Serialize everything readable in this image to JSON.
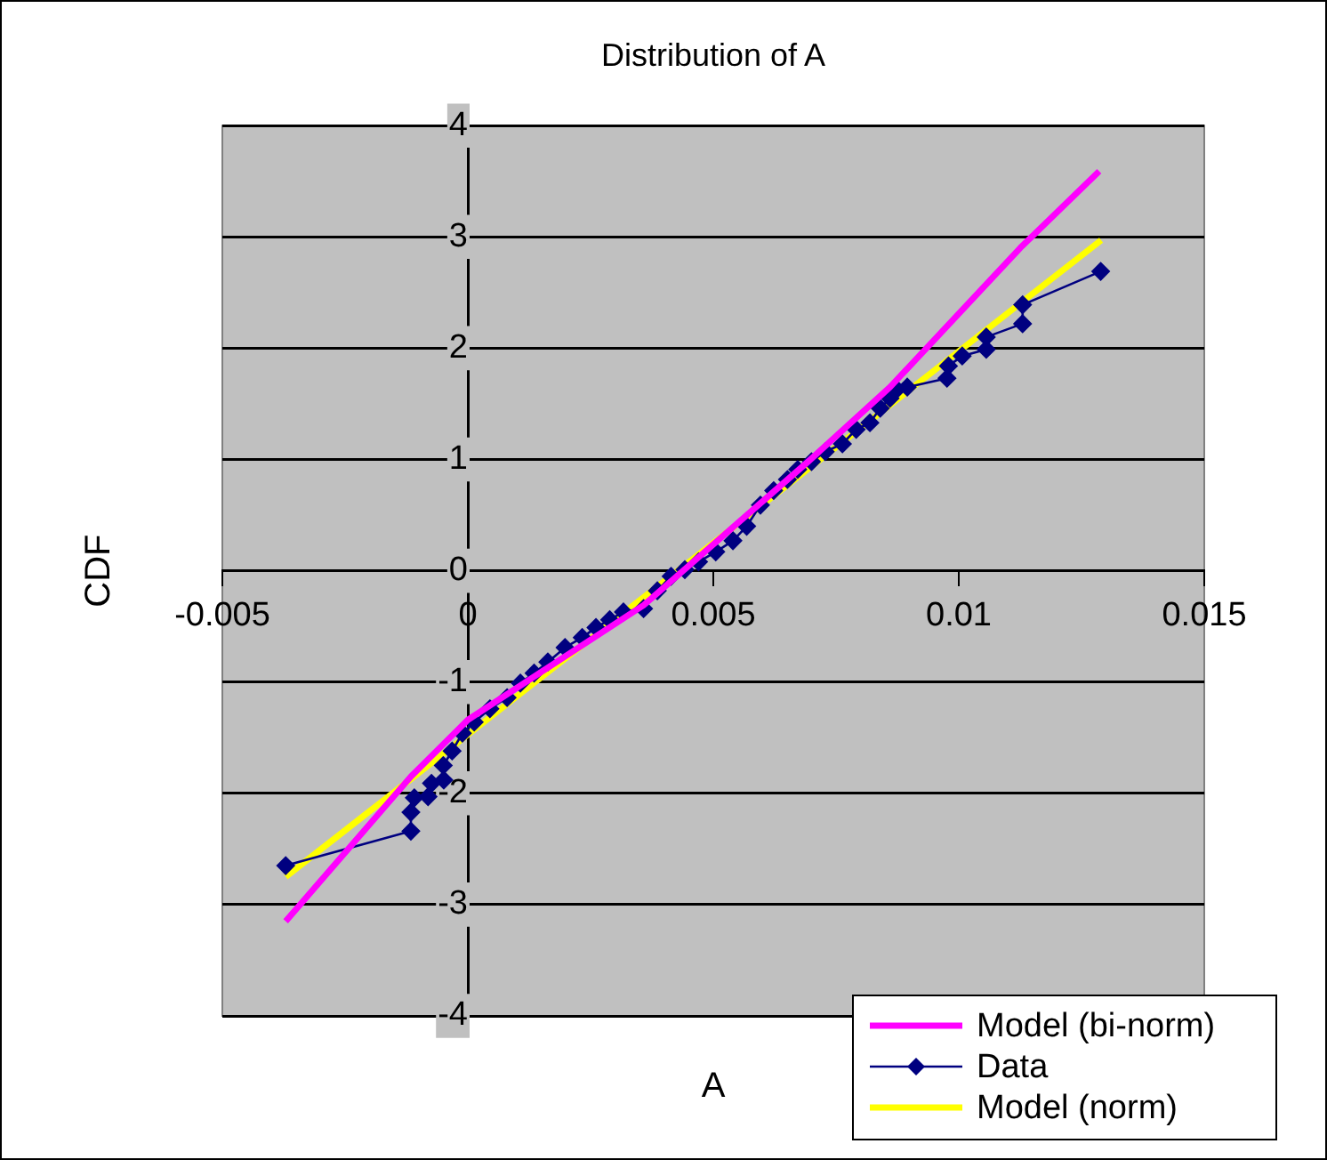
{
  "chart_data": {
    "type": "line",
    "title": "Distribution of A",
    "xlabel": "A",
    "ylabel": "CDF",
    "xlim": [
      -0.005,
      0.015
    ],
    "xticks": [
      -0.005,
      0,
      0.005,
      0.01,
      0.015
    ],
    "ylim": [
      -4,
      4
    ],
    "yticks": [
      -4,
      -3,
      -2,
      -1,
      0,
      1,
      2,
      3,
      4
    ],
    "grid": "y",
    "legend": "bottom right",
    "line_style": "solid",
    "series": [
      {
        "name": "Model (bi-norm)",
        "color": "#ff00ff",
        "marker": "none",
        "x": [
          -0.00371,
          -0.00116,
          0,
          0.00358,
          0.00693,
          0.0086,
          0.01125,
          0.01286
        ],
        "values": [
          -3.15,
          -1.85,
          -1.34,
          -0.31,
          0.98,
          1.65,
          2.9,
          3.59
        ]
      },
      {
        "name": "Data",
        "color": "#000080",
        "marker": "diamond",
        "x": [
          -0.00371,
          -0.00116,
          -0.00116,
          -0.00109,
          -0.00081,
          -0.00074,
          -0.00049,
          -0.0005,
          -0.00032,
          -0.00011,
          0.00013,
          0.00045,
          0.0008,
          0.00107,
          0.00135,
          0.00163,
          0.00198,
          0.00233,
          0.00261,
          0.00289,
          0.00317,
          0.00358,
          0.00386,
          0.00414,
          0.00442,
          0.0047,
          0.00505,
          0.0054,
          0.00568,
          0.00596,
          0.00623,
          0.00651,
          0.00672,
          0.007,
          0.00728,
          0.00763,
          0.00791,
          0.00819,
          0.0084,
          0.0086,
          0.00874,
          0.00895,
          0.00976,
          0.00979,
          0.01007,
          0.01056,
          0.01056,
          0.0113,
          0.0113,
          0.01289
        ],
        "values": [
          -2.65,
          -2.34,
          -2.17,
          -2.04,
          -2.03,
          -1.91,
          -1.88,
          -1.75,
          -1.62,
          -1.46,
          -1.36,
          -1.24,
          -1.14,
          -1.01,
          -0.92,
          -0.82,
          -0.69,
          -0.6,
          -0.51,
          -0.44,
          -0.37,
          -0.34,
          -0.18,
          -0.05,
          0.01,
          0.08,
          0.17,
          0.27,
          0.4,
          0.59,
          0.72,
          0.82,
          0.91,
          0.98,
          1.07,
          1.14,
          1.27,
          1.33,
          1.46,
          1.55,
          1.63,
          1.65,
          1.73,
          1.84,
          1.93,
          1.99,
          2.1,
          2.22,
          2.39,
          2.69
        ]
      },
      {
        "name": "Model (norm)",
        "color": "#ffff00",
        "marker": "none",
        "x": [
          -0.00371,
          0.0129
        ],
        "values": [
          -2.75,
          2.97
        ]
      }
    ]
  }
}
